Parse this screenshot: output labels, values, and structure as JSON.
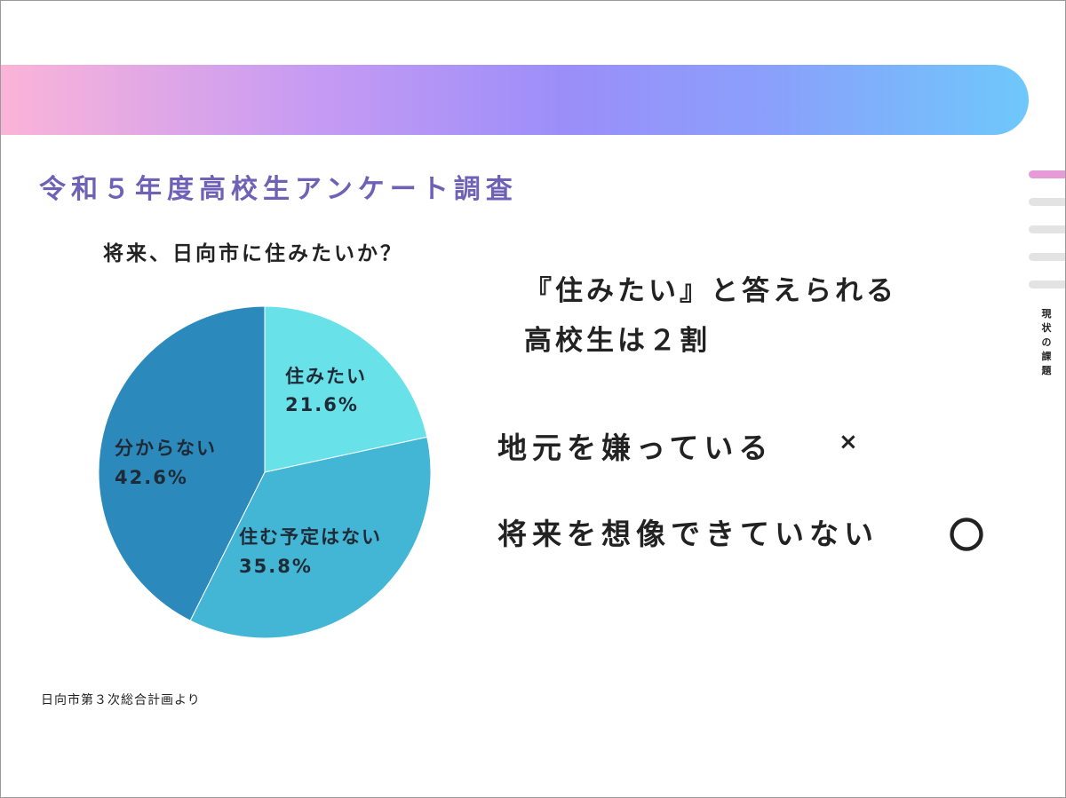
{
  "slide": {
    "title": "令和５年度高校生アンケート調査",
    "source": "日向市第３次総合計画より"
  },
  "chart_data": {
    "type": "pie",
    "title": "将来、日向市に住みたいか？",
    "slices": [
      {
        "label": "住みたい",
        "value": 21.6,
        "value_label": "21.6%",
        "color": "#68e2e8"
      },
      {
        "label": "住む予定はない",
        "value": 35.8,
        "value_label": "35.8%",
        "color": "#42b6d4"
      },
      {
        "label": "分からない",
        "value": 42.6,
        "value_label": "42.6%",
        "color": "#2b8abb"
      }
    ],
    "start": "12 o'clock",
    "direction": "clockwise"
  },
  "highlight": {
    "line1": "『住みたい』と答えられる",
    "line2": "高校生は２割"
  },
  "reasons": [
    {
      "text": "地元を嫌っている",
      "mark": "×"
    },
    {
      "text": "将来を想像できていない",
      "mark": "〇"
    }
  ],
  "side_nav": {
    "label": "現状の課題",
    "items": [
      "active",
      "inactive",
      "inactive",
      "inactive",
      "inactive"
    ],
    "active_color": "#e69ad6",
    "inactive_color": "#e3e3e3"
  }
}
